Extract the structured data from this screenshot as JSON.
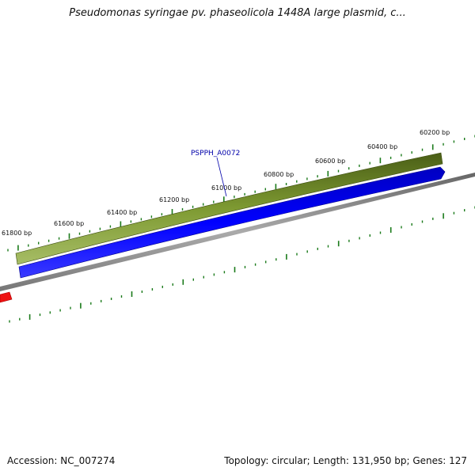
{
  "title": "Pseudomonas syringae pv. phaseolicola 1448A large plasmid, c...",
  "footer": {
    "accession": "Accession: NC_007274",
    "summary": "Topology: circular; Length: 131,950 bp; Genes: 127"
  },
  "ruler": {
    "unit": "bp",
    "labels": [
      "60200 bp",
      "60400 bp",
      "60600 bp",
      "60800 bp",
      "61000 bp",
      "61200 bp",
      "61400 bp",
      "61600 bp",
      "61800 bp"
    ]
  },
  "genes": [
    {
      "name": "PSPPH_A0072",
      "color": "#6b8e23",
      "strand": "reverse-track"
    }
  ],
  "colors": {
    "gene_green": "#6b8e23",
    "gene_blue": "#0000ee",
    "gene_red": "#ee0000",
    "backbone": "#888888",
    "tick": "#1a7a1a",
    "label_link": "#0000aa"
  }
}
